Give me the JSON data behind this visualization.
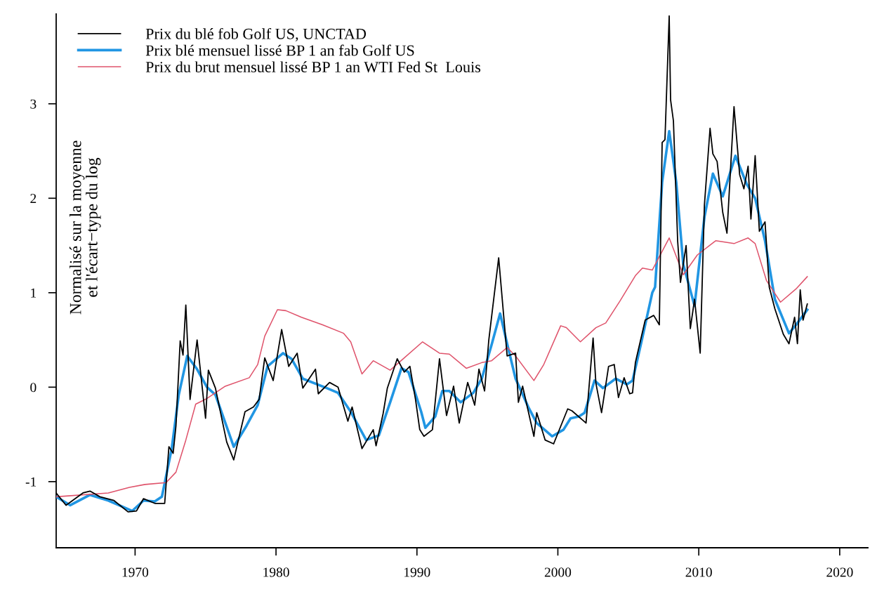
{
  "chart_data": {
    "type": "line",
    "ylabel": "Normalisé sur la moyenne\net l'écart−type du log",
    "xlim": [
      1964.4,
      2022
    ],
    "xticks": [
      1970,
      1980,
      1990,
      2000,
      2010,
      2020
    ],
    "ylim": [
      -1.7,
      3.95
    ],
    "yticks": [
      -1,
      0,
      1,
      2,
      3
    ],
    "grid": false,
    "legend": "top left",
    "line_style": "solid",
    "marker": "none",
    "series": [
      {
        "name": "Prix du blé fob Golf US, UNCTAD",
        "color": "#000000",
        "x": [
          1964.4,
          1965.1,
          1966.3,
          1966.8,
          1967.5,
          1968.5,
          1969.5,
          1970.1,
          1970.6,
          1971.4,
          1972.1,
          1972.2,
          1972.4,
          1972.7,
          1972.9,
          1973.2,
          1973.4,
          1973.6,
          1973.9,
          1974.4,
          1975.0,
          1975.2,
          1975.7,
          1976.5,
          1977.0,
          1977.8,
          1978.4,
          1978.8,
          1979.2,
          1979.8,
          1980.4,
          1980.9,
          1981.5,
          1981.9,
          1982.8,
          1983.0,
          1983.8,
          1984.4,
          1985.1,
          1985.4,
          1986.1,
          1986.9,
          1987.1,
          1987.6,
          1987.9,
          1988.6,
          1989.1,
          1989.5,
          1989.9,
          1990.2,
          1990.5,
          1991.1,
          1991.6,
          1992.1,
          1992.6,
          1993.0,
          1993.6,
          1994.1,
          1994.4,
          1994.8,
          1995.1,
          1995.8,
          1996.4,
          1997.0,
          1997.2,
          1997.5,
          1998.3,
          1998.5,
          1999.1,
          1999.7,
          2000.7,
          2001.0,
          2002.0,
          2002.5,
          2002.7,
          2003.1,
          2003.6,
          2004.0,
          2004.3,
          2004.7,
          2005.1,
          2005.3,
          2005.5,
          2006.2,
          2006.8,
          2007.2,
          2007.4,
          2007.6,
          2007.9,
          2008.0,
          2008.2,
          2008.5,
          2008.7,
          2009.1,
          2009.4,
          2009.7,
          2010.1,
          2010.4,
          2010.8,
          2011.0,
          2011.3,
          2011.7,
          2012.0,
          2012.5,
          2012.9,
          2013.2,
          2013.5,
          2013.7,
          2014.0,
          2014.3,
          2014.7,
          2015.0,
          2015.4,
          2016.0,
          2016.4,
          2016.8,
          2017.0,
          2017.2,
          2017.4,
          2017.7
        ],
        "values": [
          -1.12,
          -1.25,
          -1.12,
          -1.1,
          -1.16,
          -1.2,
          -1.32,
          -1.31,
          -1.18,
          -1.23,
          -1.23,
          -1.03,
          -0.63,
          -0.7,
          -0.41,
          0.49,
          0.34,
          0.87,
          -0.13,
          0.5,
          -0.33,
          0.18,
          -0.01,
          -0.58,
          -0.77,
          -0.26,
          -0.21,
          -0.13,
          0.31,
          0.07,
          0.61,
          0.22,
          0.36,
          -0.01,
          0.19,
          -0.07,
          0.05,
          0.0,
          -0.36,
          -0.21,
          -0.65,
          -0.45,
          -0.62,
          -0.28,
          -0.01,
          0.3,
          0.16,
          0.22,
          -0.13,
          -0.45,
          -0.52,
          -0.45,
          0.3,
          -0.3,
          0.01,
          -0.38,
          0.05,
          -0.19,
          0.19,
          -0.04,
          0.5,
          1.37,
          0.33,
          0.36,
          -0.16,
          0.01,
          -0.52,
          -0.27,
          -0.56,
          -0.6,
          -0.23,
          -0.25,
          -0.38,
          0.52,
          0.04,
          -0.27,
          0.22,
          0.24,
          -0.11,
          0.1,
          -0.07,
          -0.06,
          0.26,
          0.71,
          0.76,
          0.66,
          2.59,
          2.62,
          3.93,
          3.04,
          2.82,
          1.55,
          1.11,
          1.5,
          0.62,
          0.93,
          0.36,
          1.93,
          2.74,
          2.47,
          2.39,
          1.85,
          1.63,
          2.97,
          2.25,
          2.1,
          2.34,
          1.78,
          2.45,
          1.65,
          1.75,
          1.06,
          0.83,
          0.56,
          0.46,
          0.74,
          0.46,
          1.03,
          0.71,
          0.88
        ]
      },
      {
        "name": "Prix blé mensuel lissé BP 1 an fab Golf US",
        "color": "#2196e3",
        "x": [
          1964.4,
          1965.4,
          1966.8,
          1968.1,
          1969.8,
          1970.6,
          1971.4,
          1971.9,
          1972.6,
          1973.1,
          1973.7,
          1974.4,
          1975.1,
          1975.7,
          1977.0,
          1977.9,
          1978.7,
          1979.4,
          1980.5,
          1981.1,
          1981.9,
          1983.6,
          1984.4,
          1985.3,
          1986.4,
          1987.3,
          1988.1,
          1988.9,
          1989.4,
          1990.3,
          1990.6,
          1991.3,
          1991.8,
          1992.3,
          1993.1,
          1994.0,
          1994.6,
          1995.3,
          1995.9,
          1996.4,
          1997.0,
          1997.9,
          1998.5,
          1999.6,
          2000.4,
          2000.9,
          2001.5,
          2001.9,
          2002.6,
          2003.2,
          2004.1,
          2004.9,
          2005.3,
          2005.9,
          2006.7,
          2006.9,
          2007.4,
          2007.9,
          2008.4,
          2008.9,
          2009.7,
          2010.4,
          2011.0,
          2011.7,
          2012.6,
          2013.4,
          2014.0,
          2014.7,
          2015.4,
          2016.4,
          2016.9,
          2017.7
        ],
        "values": [
          -1.16,
          -1.25,
          -1.14,
          -1.2,
          -1.31,
          -1.2,
          -1.21,
          -1.16,
          -0.65,
          -0.08,
          0.33,
          0.19,
          0.0,
          -0.08,
          -0.63,
          -0.41,
          -0.19,
          0.22,
          0.36,
          0.3,
          0.09,
          -0.01,
          -0.06,
          -0.26,
          -0.56,
          -0.51,
          -0.16,
          0.2,
          0.16,
          -0.26,
          -0.43,
          -0.31,
          -0.04,
          -0.04,
          -0.16,
          -0.06,
          0.09,
          0.45,
          0.78,
          0.46,
          0.09,
          -0.21,
          -0.38,
          -0.52,
          -0.45,
          -0.33,
          -0.31,
          -0.27,
          0.07,
          -0.01,
          0.09,
          0.03,
          0.07,
          0.46,
          1.0,
          1.06,
          2.17,
          2.71,
          2.17,
          1.3,
          0.86,
          1.8,
          2.26,
          2.02,
          2.45,
          2.15,
          2.0,
          1.55,
          0.93,
          0.57,
          0.66,
          0.82
        ]
      },
      {
        "name": "Prix du brut mensuel lissé BP 1 an WTI Fed St  Louis",
        "color": "#df536b",
        "x": [
          1964.4,
          1968.1,
          1969.6,
          1970.7,
          1972.2,
          1972.9,
          1973.6,
          1974.3,
          1975.1,
          1976.4,
          1978.1,
          1978.7,
          1979.2,
          1980.1,
          1980.7,
          1981.8,
          1983.3,
          1984.8,
          1985.3,
          1986.1,
          1986.9,
          1988.1,
          1989.1,
          1990.4,
          1991.6,
          1992.3,
          1993.5,
          1994.6,
          1995.3,
          1996.4,
          1997.0,
          1998.3,
          1999.0,
          2000.2,
          2000.6,
          2001.6,
          2002.7,
          2003.4,
          2004.4,
          2005.5,
          2006.0,
          2006.7,
          2007.9,
          2008.9,
          2009.9,
          2011.2,
          2012.5,
          2013.5,
          2014.0,
          2014.8,
          2015.8,
          2016.9,
          2017.7
        ],
        "values": [
          -1.16,
          -1.12,
          -1.06,
          -1.03,
          -1.01,
          -0.9,
          -0.56,
          -0.18,
          -0.12,
          0.01,
          0.1,
          0.24,
          0.54,
          0.82,
          0.81,
          0.74,
          0.66,
          0.57,
          0.48,
          0.14,
          0.28,
          0.18,
          0.31,
          0.48,
          0.36,
          0.35,
          0.2,
          0.26,
          0.28,
          0.42,
          0.33,
          0.07,
          0.24,
          0.65,
          0.63,
          0.48,
          0.63,
          0.68,
          0.91,
          1.18,
          1.26,
          1.24,
          1.58,
          1.19,
          1.4,
          1.55,
          1.52,
          1.58,
          1.52,
          1.13,
          0.9,
          1.04,
          1.17
        ]
      }
    ]
  }
}
